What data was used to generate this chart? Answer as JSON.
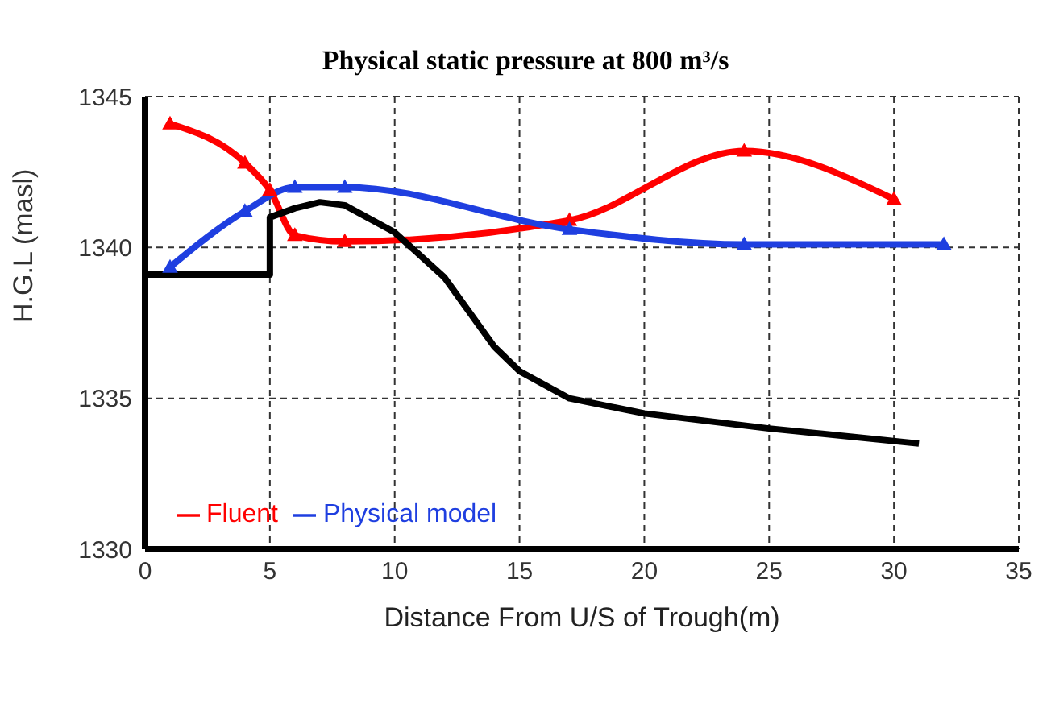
{
  "chart_data": {
    "type": "line",
    "title": "Physical static pressure at 800 m³/s",
    "xlabel": "Distance From U/S  of Trough(m)",
    "ylabel": "H.G.L (masl)",
    "xlim": [
      0,
      35
    ],
    "xticks": [
      0,
      5,
      10,
      15,
      20,
      25,
      30,
      35
    ],
    "ylim": [
      1330,
      1345
    ],
    "yticks": [
      1330,
      1335,
      1340,
      1345
    ],
    "grid": true,
    "legend": "bottom left",
    "marker": "triangle",
    "line_style": "solid",
    "series": [
      {
        "name": "Fluent",
        "color": "#ff0000",
        "x": [
          1,
          4,
          5,
          6,
          8,
          17,
          24,
          30
        ],
        "values": [
          1344.1,
          1342.8,
          1341.9,
          1340.4,
          1340.2,
          1340.9,
          1343.2,
          1341.6
        ]
      },
      {
        "name": "Physical model",
        "color": "#1f3fe0",
        "x": [
          1,
          4,
          6,
          8,
          17,
          24,
          32
        ],
        "values": [
          1339.35,
          1341.2,
          1342.0,
          1342.0,
          1340.6,
          1340.1,
          1340.1
        ]
      },
      {
        "color": "#000000",
        "marker": "none",
        "x": [
          0,
          5,
          5,
          6,
          7,
          8,
          10,
          12,
          14,
          15,
          17,
          20,
          25,
          31
        ],
        "values": [
          1339.1,
          1339.1,
          1341.0,
          1341.3,
          1341.5,
          1341.4,
          1340.5,
          1339.0,
          1336.7,
          1335.9,
          1335.0,
          1334.5,
          1334.0,
          1333.5
        ]
      }
    ]
  }
}
